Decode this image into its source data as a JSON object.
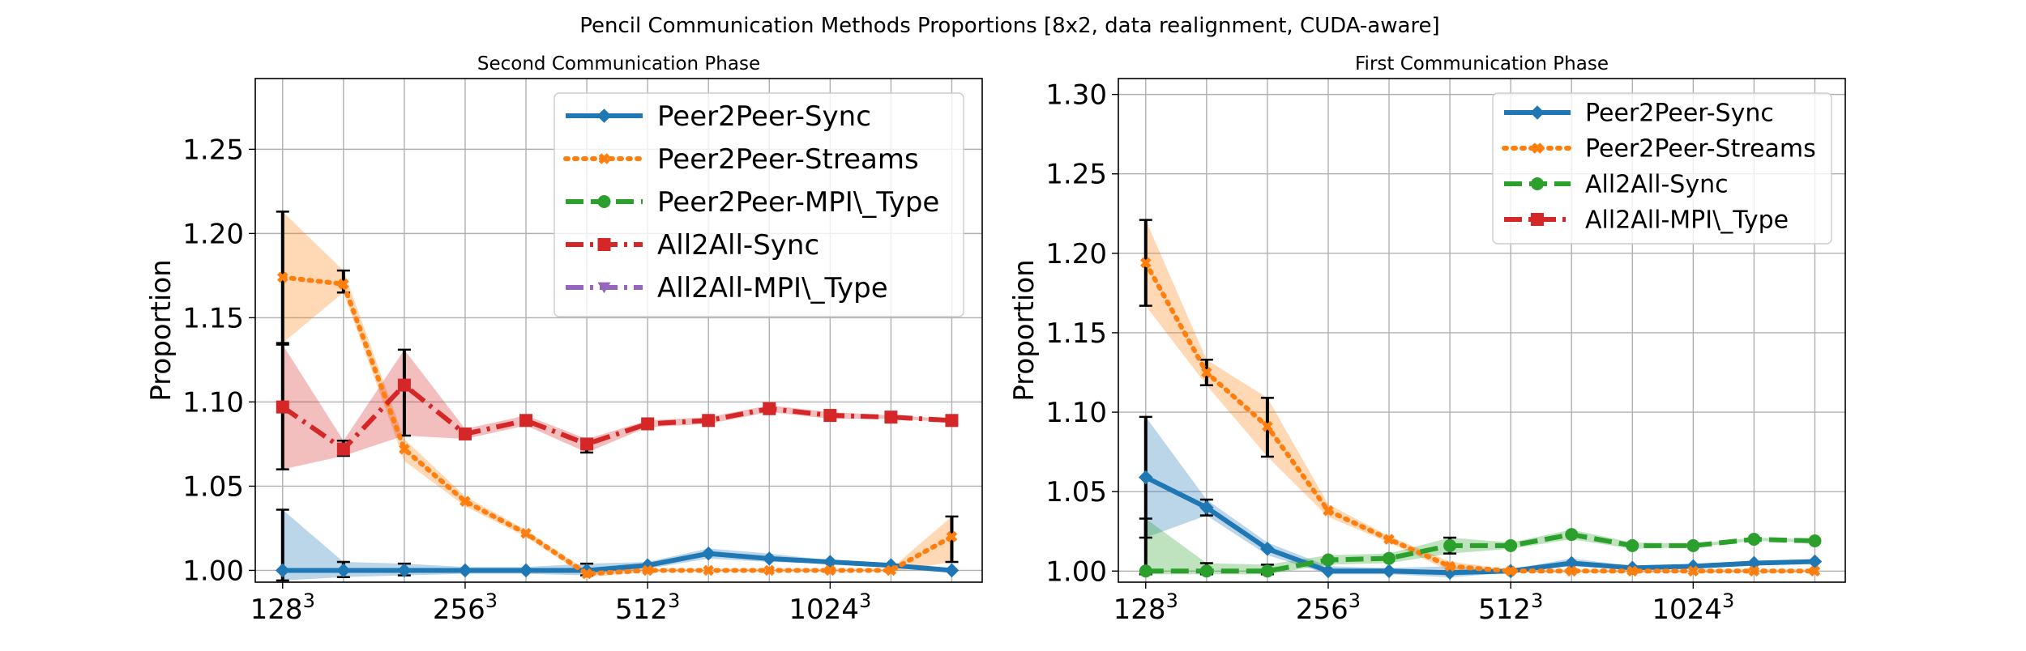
{
  "figure": {
    "title": "Pencil Communication Methods Proportions [8x2, data realignment, CUDA-aware]"
  },
  "colors": {
    "Peer2Peer-Sync": "#1f77b4",
    "Peer2Peer-Streams": "#ff7f0e",
    "Peer2Peer-MPI\\_Type": "#2ca02c",
    "All2All-Sync": "#d62728",
    "All2All-MPI\\_Type": "#9467bd",
    "All2All-Sync-right": "#2ca02c",
    "All2All-MPI\\_Type-right": "#d62728"
  },
  "chart_data": [
    {
      "type": "line",
      "title": "Second Communication Phase",
      "ylabel": "Proportion",
      "xlabel": "",
      "x": [
        1,
        2,
        3,
        4,
        5,
        6,
        7,
        8,
        9,
        10,
        11,
        12
      ],
      "xlim": [
        0.55,
        12.5
      ],
      "ylim": [
        0.993,
        1.292
      ],
      "yticks": [
        1.0,
        1.05,
        1.1,
        1.15,
        1.2,
        1.25
      ],
      "ytick_labels": [
        "1.00",
        "1.05",
        "1.10",
        "1.15",
        "1.20",
        "1.25"
      ],
      "xticks": [
        1,
        4,
        7,
        10
      ],
      "xtick_labels": [
        {
          "base": "128",
          "exp": "3"
        },
        {
          "base": "256",
          "exp": "3"
        },
        {
          "base": "512",
          "exp": "3"
        },
        {
          "base": "1024",
          "exp": "3"
        }
      ],
      "grid": true,
      "legend_position": "top-right",
      "series": [
        {
          "name": "Peer2Peer-Sync",
          "color": "#1f77b4",
          "style": "solid",
          "marker": "diamond",
          "values": [
            1.0,
            1.0,
            1.0,
            1.0,
            1.0,
            1.0,
            1.003,
            1.01,
            1.007,
            1.005,
            1.003,
            1.0
          ],
          "lower": [
            0.994,
            0.996,
            0.997,
            0.998,
            0.998,
            0.997,
            1.001,
            1.007,
            1.005,
            1.004,
            1.002,
            0.999
          ],
          "upper": [
            1.036,
            1.005,
            1.004,
            1.002,
            1.002,
            1.004,
            1.005,
            1.013,
            1.01,
            1.006,
            1.004,
            1.001
          ],
          "errorbars": [
            0,
            1,
            2,
            5
          ]
        },
        {
          "name": "Peer2Peer-Streams",
          "color": "#ff7f0e",
          "style": "dotted",
          "marker": "x",
          "values": [
            1.174,
            1.17,
            1.072,
            1.041,
            1.022,
            0.998,
            1.0,
            1.0,
            1.0,
            1.0,
            1.0,
            1.02
          ],
          "lower": [
            1.135,
            1.165,
            1.065,
            1.038,
            1.02,
            0.996,
            0.999,
            0.999,
            0.999,
            0.999,
            0.999,
            1.005
          ],
          "upper": [
            1.213,
            1.178,
            1.078,
            1.044,
            1.024,
            1.0,
            1.001,
            1.001,
            1.001,
            1.001,
            1.001,
            1.032
          ],
          "errorbars": [
            0,
            1,
            11
          ]
        },
        {
          "name": "Peer2Peer-MPI\\_Type",
          "color": "#2ca02c",
          "style": "dashed",
          "marker": "circle",
          "values": null,
          "legend_only": true
        },
        {
          "name": "All2All-Sync",
          "color": "#d62728",
          "style": "dashdot",
          "marker": "square",
          "values": [
            1.097,
            1.072,
            1.11,
            1.081,
            1.089,
            1.075,
            1.087,
            1.089,
            1.096,
            1.092,
            1.091,
            1.089
          ],
          "lower": [
            1.06,
            1.068,
            1.08,
            1.078,
            1.086,
            1.07,
            1.085,
            1.087,
            1.094,
            1.09,
            1.09,
            1.088
          ],
          "upper": [
            1.134,
            1.077,
            1.131,
            1.084,
            1.092,
            1.078,
            1.089,
            1.091,
            1.098,
            1.094,
            1.092,
            1.09
          ],
          "errorbars": [
            0,
            1,
            2,
            5
          ]
        },
        {
          "name": "All2All-MPI\\_Type",
          "color": "#9467bd",
          "style": "dashdot",
          "marker": "triangle",
          "values": null,
          "legend_only": true
        }
      ]
    },
    {
      "type": "line",
      "title": "First Communication Phase",
      "ylabel": "Proportion",
      "xlabel": "",
      "x": [
        1,
        2,
        3,
        4,
        5,
        6,
        7,
        8,
        9,
        10,
        11,
        12
      ],
      "xlim": [
        0.55,
        12.5
      ],
      "ylim": [
        0.993,
        1.31
      ],
      "yticks": [
        1.0,
        1.05,
        1.1,
        1.15,
        1.2,
        1.25,
        1.3
      ],
      "ytick_labels": [
        "1.00",
        "1.05",
        "1.10",
        "1.15",
        "1.20",
        "1.25",
        "1.30"
      ],
      "xticks": [
        1,
        4,
        7,
        10
      ],
      "xtick_labels": [
        {
          "base": "128",
          "exp": "3"
        },
        {
          "base": "256",
          "exp": "3"
        },
        {
          "base": "512",
          "exp": "3"
        },
        {
          "base": "1024",
          "exp": "3"
        }
      ],
      "grid": true,
      "legend_position": "top-right",
      "series": [
        {
          "name": "Peer2Peer-Sync",
          "color": "#1f77b4",
          "style": "solid",
          "marker": "diamond",
          "values": [
            1.059,
            1.04,
            1.014,
            1.0,
            1.0,
            0.999,
            1.0,
            1.005,
            1.002,
            1.003,
            1.005,
            1.006
          ],
          "lower": [
            1.021,
            1.035,
            1.01,
            0.998,
            0.998,
            0.996,
            0.999,
            1.003,
            1.001,
            1.002,
            1.004,
            1.005
          ],
          "upper": [
            1.097,
            1.045,
            1.018,
            1.003,
            1.002,
            1.003,
            1.001,
            1.008,
            1.003,
            1.004,
            1.006,
            1.007
          ],
          "errorbars": [
            0,
            1
          ]
        },
        {
          "name": "Peer2Peer-Streams",
          "color": "#ff7f0e",
          "style": "dotted",
          "marker": "x",
          "values": [
            1.194,
            1.125,
            1.091,
            1.038,
            1.02,
            1.003,
            1.0,
            1.0,
            1.0,
            1.0,
            1.0,
            1.0
          ],
          "lower": [
            1.167,
            1.117,
            1.072,
            1.034,
            1.018,
            1.0,
            0.999,
            0.999,
            0.999,
            0.999,
            0.999,
            0.999
          ],
          "upper": [
            1.221,
            1.133,
            1.109,
            1.042,
            1.022,
            1.006,
            1.001,
            1.001,
            1.001,
            1.001,
            1.001,
            1.001
          ],
          "errorbars": [
            0,
            1,
            2
          ]
        },
        {
          "name": "All2All-Sync",
          "color": "#2ca02c",
          "style": "dashed",
          "marker": "circle",
          "values": [
            1.0,
            1.0,
            1.0,
            1.007,
            1.008,
            1.016,
            1.016,
            1.023,
            1.016,
            1.016,
            1.02,
            1.019
          ],
          "lower": [
            0.998,
            0.998,
            0.998,
            1.004,
            1.005,
            1.011,
            1.014,
            1.02,
            1.014,
            1.015,
            1.019,
            1.018
          ],
          "upper": [
            1.033,
            1.005,
            1.004,
            1.01,
            1.011,
            1.021,
            1.018,
            1.026,
            1.018,
            1.017,
            1.021,
            1.02
          ],
          "errorbars": [
            0,
            1,
            2,
            5
          ]
        },
        {
          "name": "All2All-MPI\\_Type",
          "color": "#d62728",
          "style": "dashdot",
          "marker": "square",
          "values": null,
          "legend_only": true
        }
      ]
    }
  ]
}
